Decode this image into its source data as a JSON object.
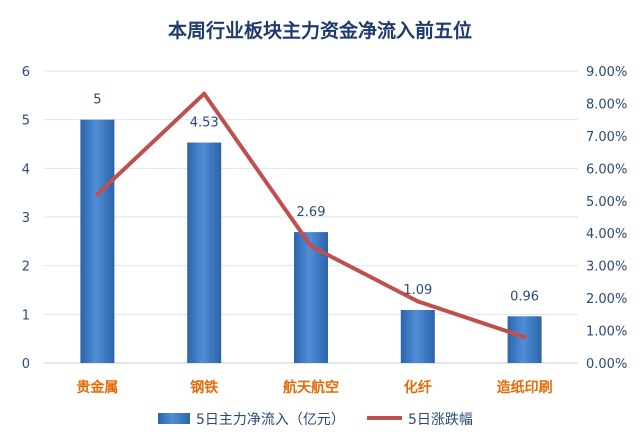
{
  "chart_data": {
    "type": "bar+line",
    "title": "本周行业板块主力资金净流入前五位",
    "categories": [
      "贵金属",
      "钢铁",
      "航天航空",
      "化纤",
      "造纸印刷"
    ],
    "series": [
      {
        "name": "5日主力净流入（亿元）",
        "type": "bar",
        "axis": "left",
        "values": [
          5,
          4.53,
          2.69,
          1.09,
          0.96
        ],
        "data_labels": [
          "5",
          "4.53",
          "2.69",
          "1.09",
          "0.96"
        ],
        "color": "#3a76c2"
      },
      {
        "name": "5日涨跌幅",
        "type": "line",
        "axis": "right",
        "values": [
          0.052,
          0.083,
          0.036,
          0.019,
          0.008
        ],
        "color": "#c0504d"
      }
    ],
    "y_left": {
      "range": [
        0,
        6
      ],
      "ticks": [
        "0",
        "1",
        "2",
        "3",
        "4",
        "5",
        "6"
      ]
    },
    "y_right": {
      "range": [
        0,
        0.09
      ],
      "ticks": [
        "0.00%",
        "1.00%",
        "2.00%",
        "3.00%",
        "4.00%",
        "5.00%",
        "6.00%",
        "7.00%",
        "8.00%",
        "9.00%"
      ]
    },
    "grid": true,
    "legend_position": "bottom"
  }
}
